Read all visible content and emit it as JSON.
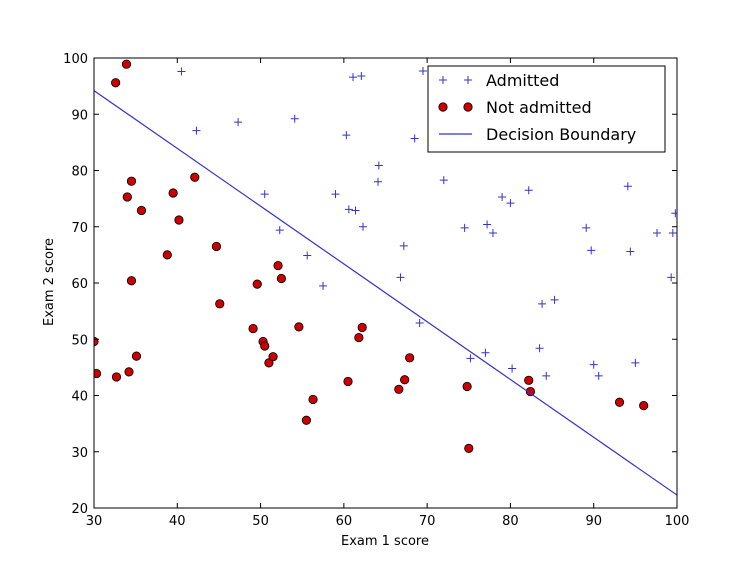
{
  "chart_data": {
    "type": "scatter",
    "title": "",
    "xlabel": "Exam 1 score",
    "ylabel": "Exam 2 score",
    "xlim": [
      30,
      100
    ],
    "ylim": [
      20,
      100
    ],
    "xticks": [
      30,
      40,
      50,
      60,
      70,
      80,
      90,
      100
    ],
    "yticks": [
      20,
      30,
      40,
      50,
      60,
      70,
      80,
      90,
      100
    ],
    "grid": false,
    "legend_position": "top-right",
    "legend": [
      "Admitted",
      "Not admitted",
      "Decision Boundary"
    ],
    "series": [
      {
        "name": "Admitted",
        "marker": "plus",
        "color": "#3333cc",
        "points": [
          [
            40.5,
            97.6
          ],
          [
            42.3,
            87.1
          ],
          [
            47.3,
            88.6
          ],
          [
            50.5,
            75.8
          ],
          [
            52.3,
            69.4
          ],
          [
            54.1,
            89.2
          ],
          [
            55.6,
            64.9
          ],
          [
            57.5,
            59.5
          ],
          [
            59.0,
            75.8
          ],
          [
            60.3,
            86.3
          ],
          [
            60.6,
            73.1
          ],
          [
            61.1,
            96.6
          ],
          [
            61.4,
            72.9
          ],
          [
            62.1,
            96.8
          ],
          [
            62.3,
            70.0
          ],
          [
            64.1,
            78.0
          ],
          [
            64.2,
            80.9
          ],
          [
            66.8,
            61.0
          ],
          [
            67.2,
            66.6
          ],
          [
            68.5,
            85.7
          ],
          [
            69.1,
            52.9
          ],
          [
            69.5,
            97.7
          ],
          [
            72.0,
            78.3
          ],
          [
            74.5,
            69.8
          ],
          [
            75.2,
            46.6
          ],
          [
            77.0,
            47.6
          ],
          [
            77.2,
            70.4
          ],
          [
            77.9,
            68.9
          ],
          [
            79.0,
            75.3
          ],
          [
            80.0,
            74.2
          ],
          [
            80.2,
            44.8
          ],
          [
            82.2,
            76.5
          ],
          [
            83.5,
            48.4
          ],
          [
            83.8,
            56.3
          ],
          [
            84.3,
            43.5
          ],
          [
            85.3,
            57.0
          ],
          [
            89.1,
            69.8
          ],
          [
            89.7,
            65.8
          ],
          [
            90.0,
            45.5
          ],
          [
            90.6,
            43.5
          ],
          [
            94.1,
            77.2
          ],
          [
            94.4,
            65.6
          ],
          [
            95.0,
            45.8
          ],
          [
            97.6,
            68.9
          ],
          [
            99.3,
            61.0
          ],
          [
            99.5,
            68.9
          ],
          [
            99.8,
            72.4
          ]
        ]
      },
      {
        "name": "Not admitted",
        "marker": "circle",
        "color": "#cc0000",
        "points": [
          [
            30.0,
            49.6
          ],
          [
            30.3,
            43.9
          ],
          [
            32.6,
            95.6
          ],
          [
            32.7,
            43.3
          ],
          [
            33.9,
            98.9
          ],
          [
            34.0,
            75.3
          ],
          [
            34.2,
            44.2
          ],
          [
            34.5,
            60.4
          ],
          [
            34.5,
            78.1
          ],
          [
            35.1,
            47.0
          ],
          [
            35.7,
            72.9
          ],
          [
            38.8,
            65.0
          ],
          [
            39.5,
            76.0
          ],
          [
            40.2,
            71.2
          ],
          [
            42.1,
            78.8
          ],
          [
            44.7,
            66.5
          ],
          [
            45.1,
            56.3
          ],
          [
            49.1,
            51.9
          ],
          [
            49.6,
            59.8
          ],
          [
            50.3,
            49.6
          ],
          [
            50.5,
            48.8
          ],
          [
            51.0,
            45.8
          ],
          [
            51.5,
            46.9
          ],
          [
            52.1,
            63.1
          ],
          [
            52.5,
            60.8
          ],
          [
            54.6,
            52.2
          ],
          [
            55.5,
            35.6
          ],
          [
            56.3,
            39.3
          ],
          [
            60.5,
            42.5
          ],
          [
            61.8,
            50.3
          ],
          [
            62.2,
            52.1
          ],
          [
            66.6,
            41.1
          ],
          [
            67.3,
            42.8
          ],
          [
            67.9,
            46.7
          ],
          [
            74.8,
            41.6
          ],
          [
            75.0,
            30.6
          ],
          [
            82.2,
            42.7
          ],
          [
            82.4,
            40.7
          ],
          [
            93.1,
            38.8
          ],
          [
            96.0,
            38.2
          ]
        ]
      },
      {
        "name": "Decision Boundary",
        "marker": "line",
        "color": "#3333cc",
        "x": [
          30,
          100
        ],
        "y": [
          94.2,
          22.3
        ]
      }
    ]
  }
}
